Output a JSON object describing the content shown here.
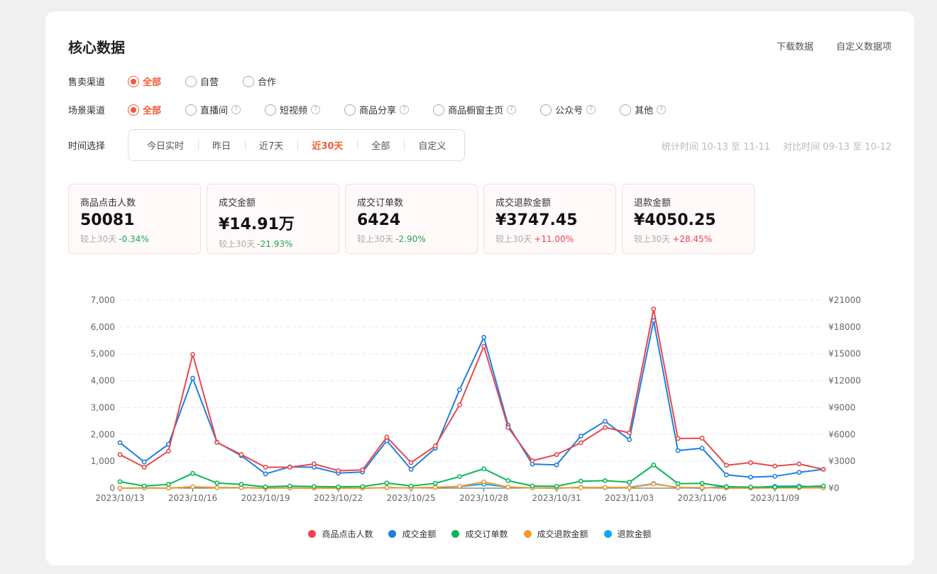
{
  "header": {
    "title": "核心数据",
    "download_label": "下载数据",
    "custom_label": "自定义数据项"
  },
  "sale_channel": {
    "label": "售卖渠道",
    "options": [
      {
        "label": "全部",
        "selected": true
      },
      {
        "label": "自营",
        "selected": false
      },
      {
        "label": "合作",
        "selected": false
      }
    ]
  },
  "scene_channel": {
    "label": "场景渠道",
    "options": [
      {
        "label": "全部",
        "selected": true,
        "help": false
      },
      {
        "label": "直播间",
        "selected": false,
        "help": true
      },
      {
        "label": "短视频",
        "selected": false,
        "help": true
      },
      {
        "label": "商品分享",
        "selected": false,
        "help": true
      },
      {
        "label": "商品橱窗主页",
        "selected": false,
        "help": true
      },
      {
        "label": "公众号",
        "selected": false,
        "help": true
      },
      {
        "label": "其他",
        "selected": false,
        "help": true
      }
    ],
    "help_glyph": "?"
  },
  "time_select": {
    "label": "时间选择",
    "options": [
      {
        "label": "今日实时",
        "selected": false
      },
      {
        "label": "昨日",
        "selected": false
      },
      {
        "label": "近7天",
        "selected": false
      },
      {
        "label": "近30天",
        "selected": true
      },
      {
        "label": "全部",
        "selected": false
      },
      {
        "label": "自定义",
        "selected": false
      }
    ],
    "stat_time": "统计时间 10-13 至 11-11",
    "compare_time": "对比时间 09-13 至 10-12"
  },
  "metrics": [
    {
      "label": "商品点击人数",
      "value": "50081",
      "compare_prefix": "较上30天",
      "change": "-0.34%",
      "trend": "down"
    },
    {
      "label": "成交金额",
      "value": "¥14.91万",
      "compare_prefix": "较上30天",
      "change": "-21.93%",
      "trend": "down"
    },
    {
      "label": "成交订单数",
      "value": "6424",
      "compare_prefix": "较上30天",
      "change": "-2.90%",
      "trend": "down"
    },
    {
      "label": "成交退款金额",
      "value": "¥3747.45",
      "compare_prefix": "较上30天",
      "change": "+11.00%",
      "trend": "up"
    },
    {
      "label": "退款金额",
      "value": "¥4050.25",
      "compare_prefix": "较上30天",
      "change": "+28.45%",
      "trend": "up"
    }
  ],
  "chart_data": {
    "type": "line",
    "x": [
      "2023/10/13",
      "2023/10/14",
      "2023/10/15",
      "2023/10/16",
      "2023/10/17",
      "2023/10/18",
      "2023/10/19",
      "2023/10/20",
      "2023/10/21",
      "2023/10/22",
      "2023/10/23",
      "2023/10/24",
      "2023/10/25",
      "2023/10/26",
      "2023/10/27",
      "2023/10/28",
      "2023/10/29",
      "2023/10/30",
      "2023/10/31",
      "2023/11/01",
      "2023/11/02",
      "2023/11/03",
      "2023/11/04",
      "2023/11/05",
      "2023/11/06",
      "2023/11/07",
      "2023/11/08",
      "2023/11/09",
      "2023/11/10",
      "2023/11/11"
    ],
    "x_tick_labels": [
      "2023/10/13",
      "2023/10/16",
      "2023/10/19",
      "2023/10/22",
      "2023/10/25",
      "2023/10/28",
      "2023/10/31",
      "2023/11/03",
      "2023/11/06",
      "2023/11/09"
    ],
    "y_left": {
      "min": 0,
      "max": 7000,
      "ticks": [
        "0",
        "1,000",
        "2,000",
        "3,000",
        "4,000",
        "5,000",
        "6,000",
        "7,000"
      ]
    },
    "y_right": {
      "min": 0,
      "max": 21000,
      "ticks": [
        "¥0",
        "¥3000",
        "¥6000",
        "¥9000",
        "¥12000",
        "¥15000",
        "¥18000",
        "¥21000"
      ]
    },
    "grid": true,
    "legend_position": "bottom",
    "series": [
      {
        "name": "商品点击人数",
        "axis": "left",
        "color": "#e8474d",
        "values": [
          1250,
          780,
          1380,
          4980,
          1700,
          1250,
          780,
          780,
          900,
          650,
          680,
          1900,
          950,
          1570,
          3100,
          5280,
          2260,
          1020,
          1250,
          1690,
          2260,
          2060,
          6670,
          1850,
          1860,
          850,
          950,
          820,
          900,
          700
        ]
      },
      {
        "name": "成交金额",
        "axis": "right",
        "color": "#1f7fe0",
        "values": [
          5080,
          2930,
          4900,
          12280,
          5130,
          3630,
          1590,
          2380,
          2340,
          1680,
          1800,
          5300,
          2100,
          4460,
          11000,
          16850,
          7040,
          2690,
          2600,
          5820,
          7470,
          5410,
          18720,
          4200,
          4460,
          1480,
          1230,
          1320,
          1760,
          2100
        ]
      },
      {
        "name": "成交订单数",
        "axis": "left",
        "color": "#0ab658",
        "values": [
          240,
          80,
          140,
          550,
          190,
          140,
          50,
          80,
          60,
          50,
          60,
          190,
          80,
          180,
          430,
          720,
          280,
          80,
          70,
          260,
          280,
          220,
          860,
          170,
          180,
          50,
          40,
          40,
          50,
          80
        ]
      },
      {
        "name": "成交退款金额",
        "axis": "right",
        "color": "#f59a30",
        "values": [
          0,
          30,
          0,
          150,
          60,
          60,
          0,
          30,
          0,
          0,
          0,
          60,
          30,
          90,
          210,
          700,
          120,
          30,
          30,
          60,
          90,
          60,
          450,
          90,
          60,
          0,
          0,
          30,
          30,
          30
        ]
      },
      {
        "name": "退款金额",
        "axis": "right",
        "color": "#12a5e8",
        "values": [
          0,
          30,
          0,
          150,
          60,
          60,
          0,
          30,
          0,
          0,
          0,
          60,
          30,
          90,
          180,
          450,
          120,
          30,
          0,
          90,
          60,
          90,
          510,
          60,
          0,
          180,
          60,
          210,
          240,
          60
        ]
      }
    ]
  }
}
